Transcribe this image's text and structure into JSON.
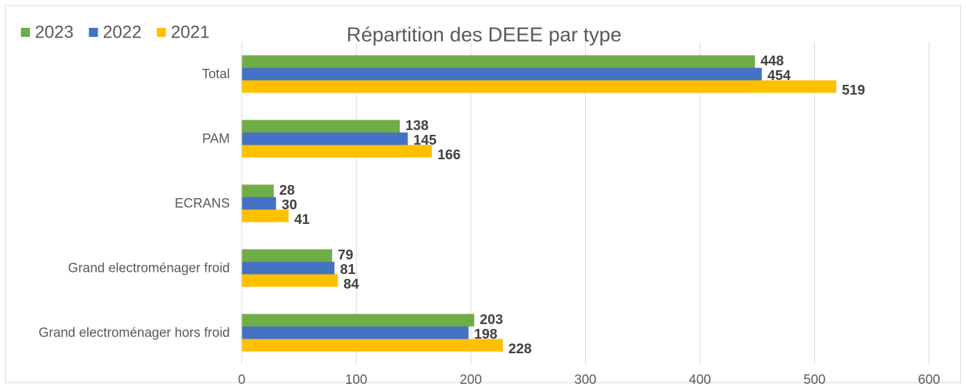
{
  "chart_data": {
    "type": "bar",
    "orientation": "horizontal",
    "title": "Répartition des DEEE par type",
    "categories": [
      "Total",
      "PAM",
      "ECRANS",
      "Grand electroménager froid",
      "Grand electroménager hors froid"
    ],
    "series": [
      {
        "name": "2023",
        "color": "#70ad47",
        "values": [
          448,
          138,
          28,
          79,
          203
        ]
      },
      {
        "name": "2022",
        "color": "#4472c4",
        "values": [
          454,
          145,
          30,
          81,
          198
        ]
      },
      {
        "name": "2021",
        "color": "#ffc000",
        "values": [
          519,
          166,
          41,
          84,
          228
        ]
      }
    ],
    "xlim": [
      0,
      600
    ],
    "xticks": [
      0,
      100,
      200,
      300,
      400,
      500,
      600
    ],
    "grid": true,
    "legend": "top-left"
  }
}
